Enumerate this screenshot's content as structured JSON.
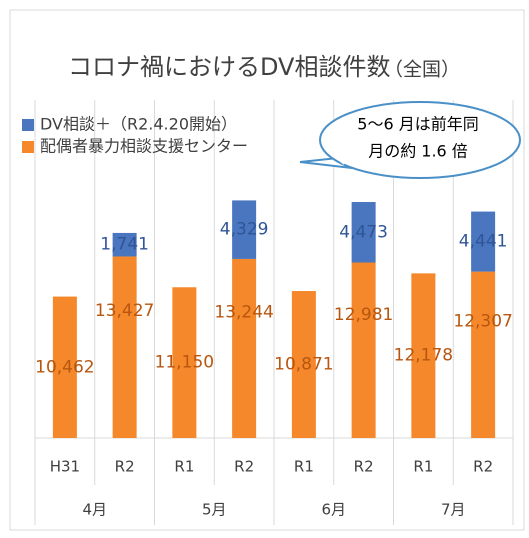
{
  "chart_data": {
    "type": "bar",
    "stacked": true,
    "title": "コロナ禍におけるDV相談件数",
    "subtitle": "（全国）",
    "annotation": [
      "5～6 月は前年同",
      "月の約 1.6 倍"
    ],
    "categories": [
      "H31",
      "R2",
      "R1",
      "R2",
      "R1",
      "R2",
      "R1",
      "R2"
    ],
    "groups": [
      "4月",
      "5月",
      "6月",
      "7月"
    ],
    "series": [
      {
        "name": "配偶者暴力相談支援センター",
        "color": "#f4882a",
        "label_color": "#b8560f",
        "values": [
          10462,
          13427,
          11150,
          13244,
          10871,
          12981,
          12178,
          12307
        ],
        "value_labels": [
          "10,462",
          "13,427",
          "11,150",
          "13,244",
          "10,871",
          "12,981",
          "12,178",
          "12,307"
        ]
      },
      {
        "name": "DV相談＋（R2.4.20開始）",
        "color": "#4a76c0",
        "label_color": "#2f5597",
        "values": [
          null,
          1741,
          null,
          4329,
          null,
          4473,
          null,
          4441
        ],
        "value_labels": [
          null,
          "1,741",
          null,
          "4,329",
          null,
          "4,473",
          null,
          "4,441"
        ]
      }
    ],
    "ylim": [
      0,
      25000
    ]
  }
}
